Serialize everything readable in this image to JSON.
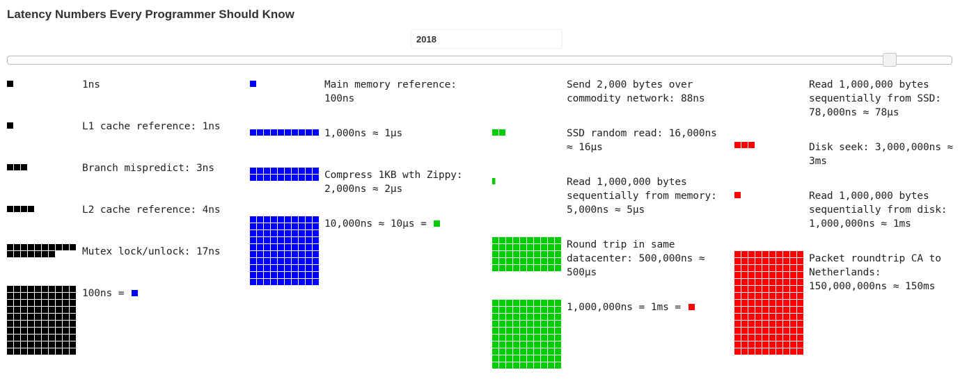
{
  "title": "Latency Numbers Every Programmer Should Know",
  "year": "2018",
  "slider": {
    "value": 2018
  },
  "colors": {
    "ns": "#000000",
    "hundred_ns": "#0000ff",
    "ten_us": "#00cc00",
    "ms": "#ff0000"
  },
  "items": [
    {
      "label": "1ns",
      "units": 1,
      "color": "#000000"
    },
    {
      "label": "L1 cache reference: 1ns",
      "units": 1,
      "color": "#000000"
    },
    {
      "label": "Branch mispredict: 3ns",
      "units": 3,
      "color": "#000000"
    },
    {
      "label": "L2 cache reference: 4ns",
      "units": 4,
      "color": "#000000"
    },
    {
      "label": "Mutex lock/unlock: 17ns",
      "units": 17,
      "color": "#000000"
    },
    {
      "label": "100ns = ",
      "units": 100,
      "color": "#000000",
      "legend_color": "#0000ff"
    },
    {
      "label": "Main memory reference: 100ns",
      "units": 1,
      "color": "#0000ff"
    },
    {
      "label": "1,000ns ≈ 1µs",
      "units": 10,
      "color": "#0000ff"
    },
    {
      "label": "Compress 1KB wth Zippy: 2,000ns ≈ 2µs",
      "units": 20,
      "color": "#0000ff"
    },
    {
      "label": "10,000ns ≈ 10µs = ",
      "units": 100,
      "color": "#0000ff",
      "legend_color": "#00cc00"
    },
    {
      "label": "Send 2,000 bytes over commodity network: 88ns",
      "units": 0,
      "color": "#00cc00"
    },
    {
      "label": "SSD random read: 16,000ns ≈ 16µs",
      "units": 2,
      "color": "#00cc00"
    },
    {
      "label": "Read 1,000,000 bytes sequentially from memory: 5,000ns ≈ 5µs",
      "units": 0.5,
      "color": "#00cc00"
    },
    {
      "label": "Round trip in same datacenter: 500,000ns ≈ 500µs",
      "units": 50,
      "color": "#00cc00"
    },
    {
      "label": "1,000,000ns = 1ms = ",
      "units": 100,
      "color": "#00cc00",
      "legend_color": "#ff0000"
    },
    {
      "label": "Read 1,000,000 bytes sequentially from SSD: 78,000ns ≈ 78µs",
      "units": 0,
      "color": "#ff0000"
    },
    {
      "label": "Disk seek: 3,000,000ns ≈ 3ms",
      "units": 3,
      "color": "#ff0000"
    },
    {
      "label": "Read 1,000,000 bytes sequentially from disk: 1,000,000ns ≈ 1ms",
      "units": 1,
      "color": "#ff0000"
    },
    {
      "label": "Packet roundtrip CA to Netherlands: 150,000,000ns ≈ 150ms",
      "units": 150,
      "color": "#ff0000"
    }
  ]
}
